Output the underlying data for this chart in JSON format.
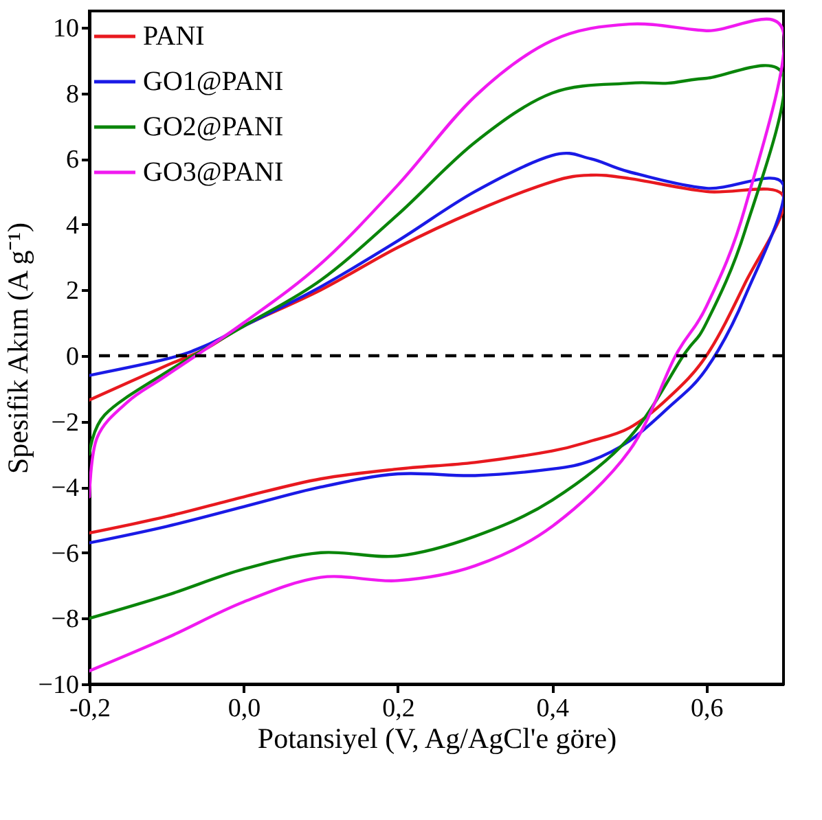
{
  "chart_data": {
    "type": "line",
    "xlabel": "Potansiyel (V, Ag/AgCl'e göre)",
    "ylabel": "Spesifik Akım (A g⁻¹)",
    "xlim": [
      -0.2,
      0.7
    ],
    "ylim": [
      -10,
      10.5
    ],
    "xticks": [
      {
        "value": -0.2,
        "label": "-0,2"
      },
      {
        "value": 0.0,
        "label": "0,0"
      },
      {
        "value": 0.2,
        "label": "0,2"
      },
      {
        "value": 0.4,
        "label": "0,4"
      },
      {
        "value": 0.6,
        "label": "0,6"
      }
    ],
    "yticks": [
      -10,
      -8,
      -6,
      -4,
      -2,
      0,
      2,
      4,
      6,
      8,
      10
    ],
    "grid": false,
    "legend": "top left",
    "line_style": "solid",
    "ref_lines": [
      {
        "axis": "y",
        "value": 0,
        "label": null,
        "color": "#000000",
        "line_style": "dashed"
      }
    ],
    "series": [
      {
        "name": "PANI",
        "color": "#e8191f",
        "x": [
          -0.2,
          -0.1,
          -0.05,
          0.0,
          0.1,
          0.2,
          0.3,
          0.4,
          0.45,
          0.5,
          0.6,
          0.7,
          0.65,
          0.6,
          0.55,
          0.5,
          0.45,
          0.4,
          0.3,
          0.2,
          0.1,
          0.0,
          -0.1,
          -0.2
        ],
        "values": [
          -1.35,
          -0.3,
          0.2,
          0.9,
          2.0,
          3.3,
          4.4,
          5.3,
          5.5,
          5.4,
          5.0,
          4.85,
          2.2,
          0.0,
          -1.3,
          -2.2,
          -2.6,
          -2.9,
          -3.25,
          -3.45,
          -3.75,
          -4.3,
          -4.9,
          -5.4
        ]
      },
      {
        "name": "GO1@PANI",
        "color": "#1a1ae6",
        "x": [
          -0.2,
          -0.1,
          -0.05,
          0.0,
          0.1,
          0.2,
          0.3,
          0.4,
          0.45,
          0.5,
          0.6,
          0.7,
          0.65,
          0.6,
          0.55,
          0.5,
          0.45,
          0.4,
          0.3,
          0.2,
          0.1,
          0.0,
          -0.1,
          -0.2
        ],
        "values": [
          -0.6,
          -0.1,
          0.3,
          0.9,
          2.1,
          3.5,
          5.0,
          6.1,
          6.0,
          5.6,
          5.1,
          5.2,
          1.8,
          -0.4,
          -1.6,
          -2.6,
          -3.2,
          -3.45,
          -3.65,
          -3.6,
          -4.0,
          -4.6,
          -5.2,
          -5.7
        ]
      },
      {
        "name": "GO2@PANI",
        "color": "#0a850a",
        "x": [
          -0.2,
          -0.18,
          -0.1,
          0.0,
          0.1,
          0.2,
          0.3,
          0.4,
          0.5,
          0.55,
          0.6,
          0.7,
          0.65,
          0.6,
          0.57,
          0.5,
          0.4,
          0.3,
          0.2,
          0.1,
          0.0,
          -0.1,
          -0.2
        ],
        "values": [
          -3.0,
          -1.8,
          -0.5,
          0.9,
          2.3,
          4.3,
          6.5,
          8.0,
          8.3,
          8.3,
          8.45,
          8.5,
          3.8,
          1.0,
          0.0,
          -2.5,
          -4.4,
          -5.5,
          -6.1,
          -6.0,
          -6.5,
          -7.3,
          -8.0
        ]
      },
      {
        "name": "GO3@PANI",
        "color": "#f01af0",
        "x": [
          -0.2,
          -0.19,
          -0.15,
          -0.1,
          0.0,
          0.1,
          0.2,
          0.3,
          0.4,
          0.5,
          0.6,
          0.7,
          0.65,
          0.6,
          0.56,
          0.5,
          0.4,
          0.3,
          0.2,
          0.1,
          0.0,
          -0.1,
          -0.2
        ],
        "values": [
          -4.3,
          -2.5,
          -1.4,
          -0.6,
          1.0,
          2.8,
          5.2,
          7.9,
          9.6,
          10.1,
          9.9,
          9.85,
          4.5,
          1.5,
          0.0,
          -2.9,
          -5.2,
          -6.4,
          -6.85,
          -6.75,
          -7.5,
          -8.6,
          -9.6
        ]
      }
    ]
  }
}
